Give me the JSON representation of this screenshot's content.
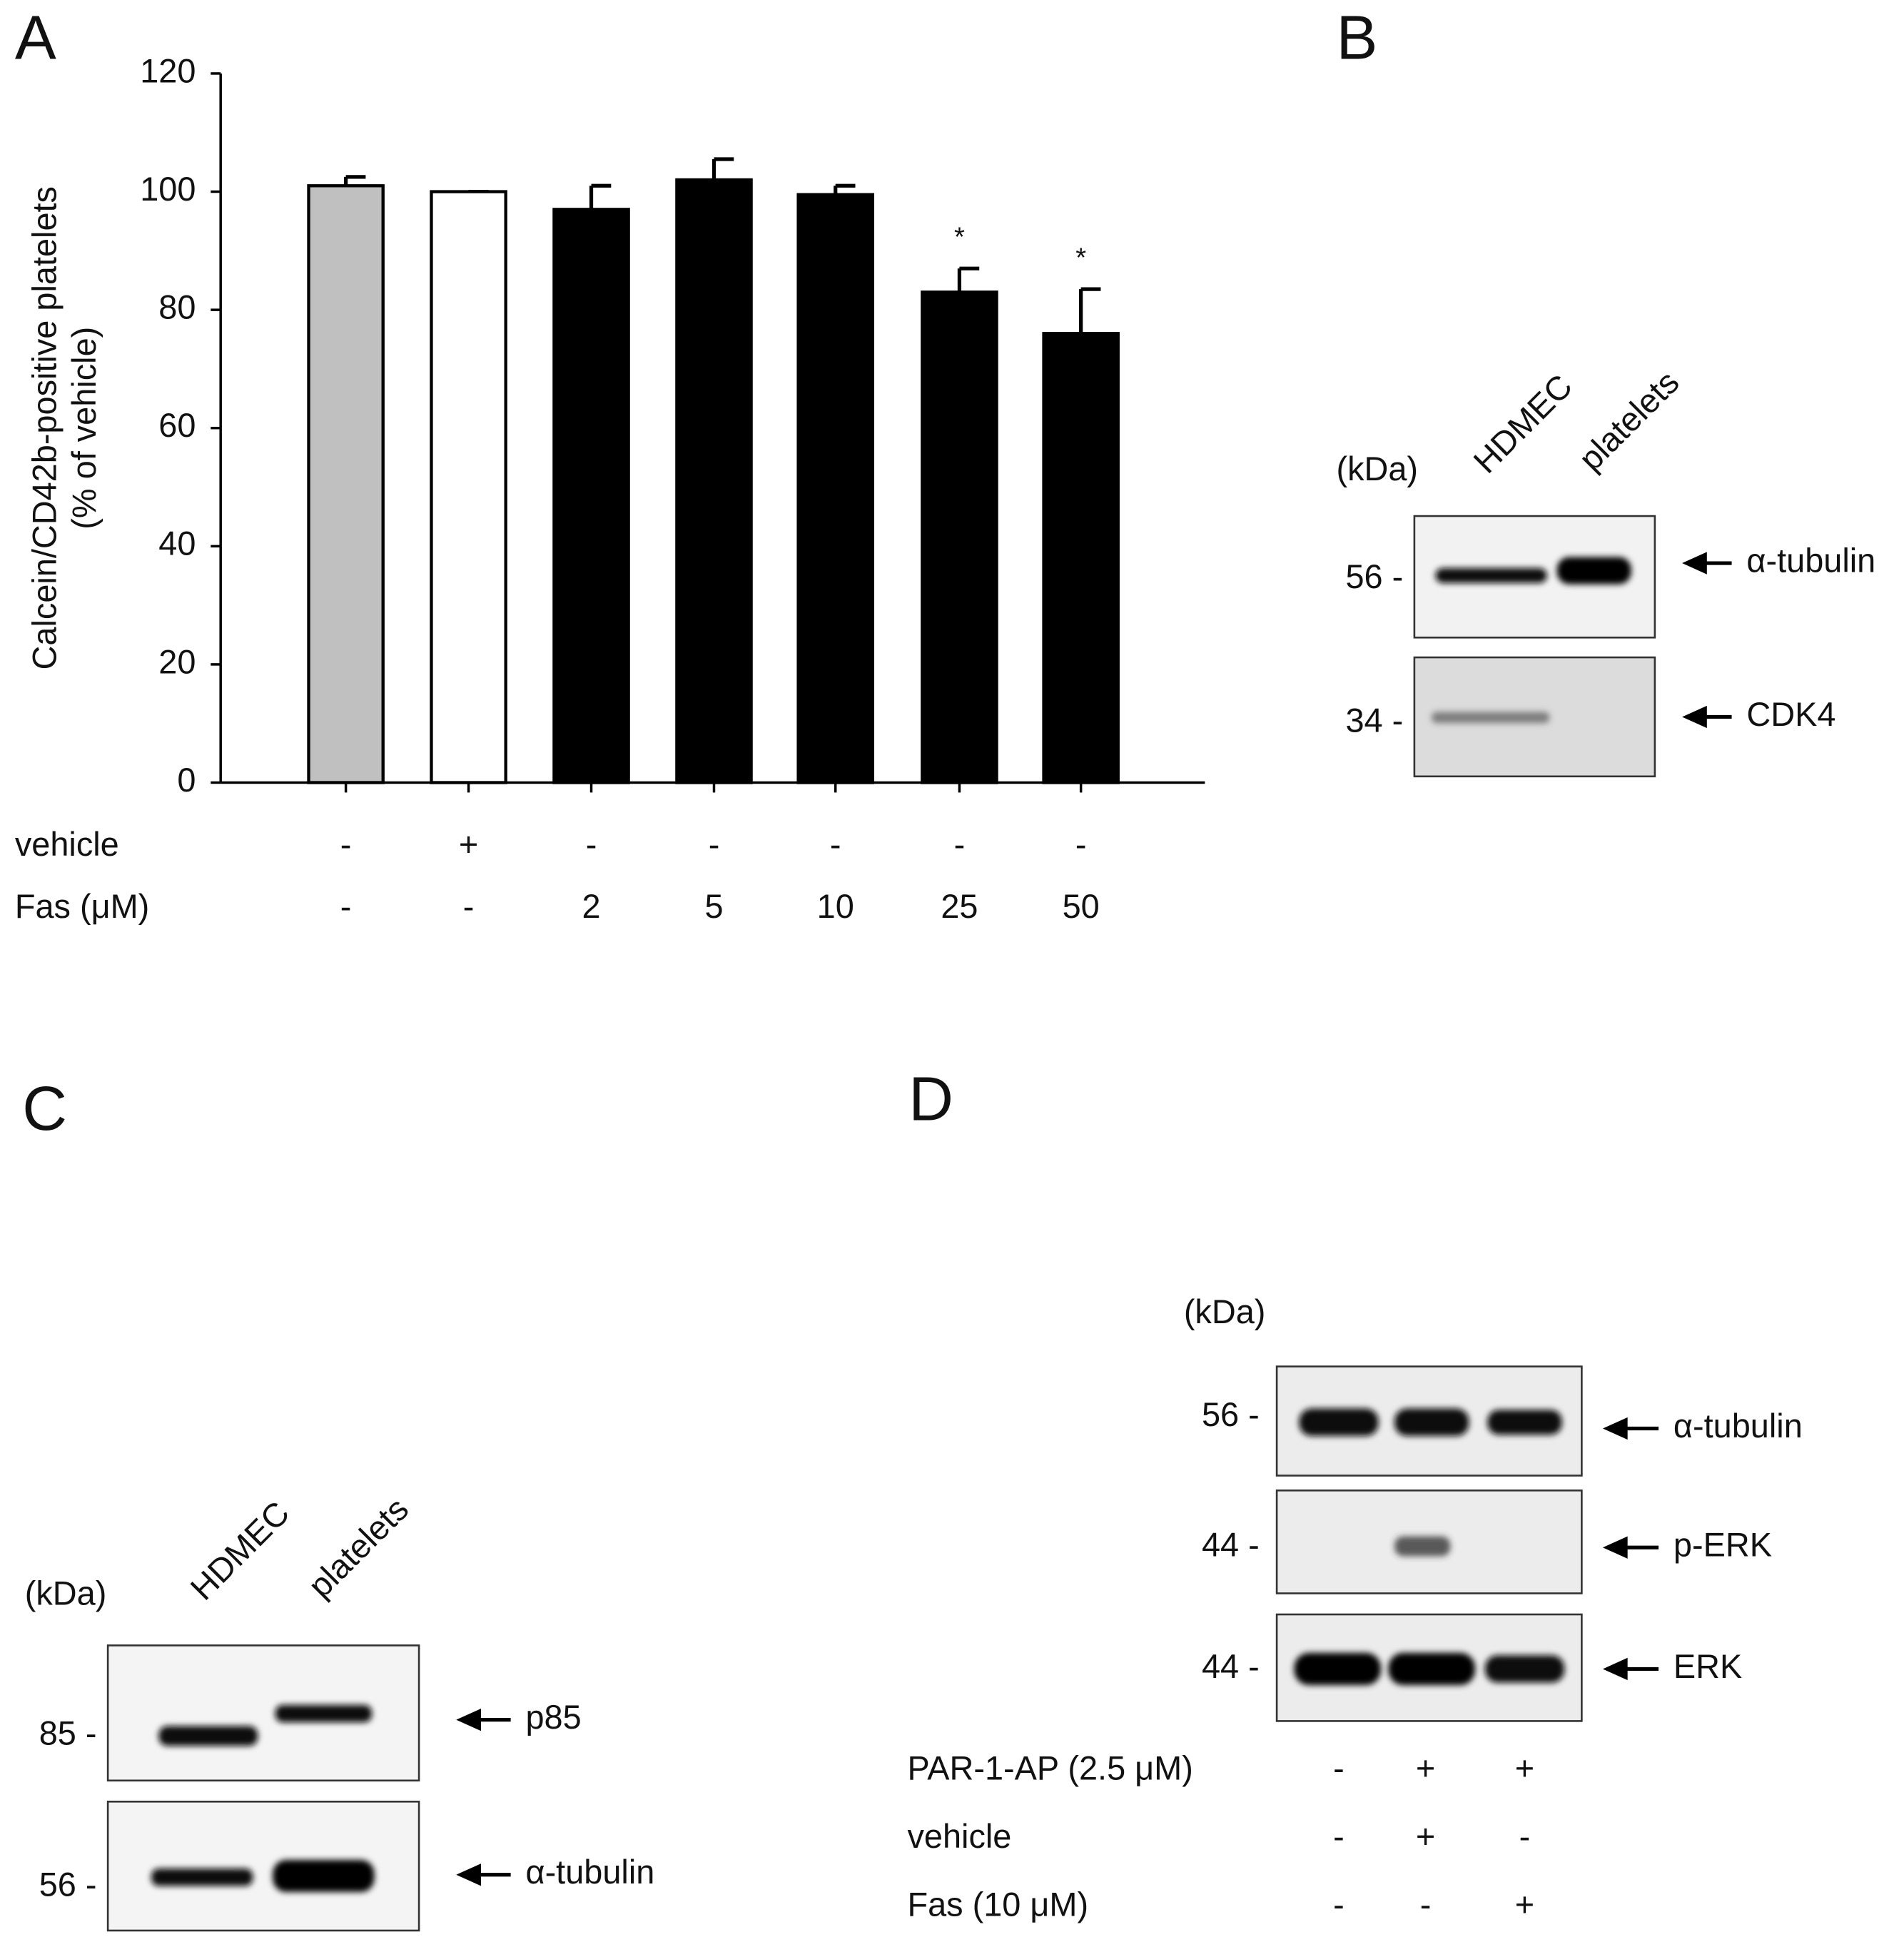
{
  "chart_data": {
    "type": "bar",
    "panel": "A",
    "ylabel": [
      "Calcein/CD42b-positive platelets",
      "(% of vehicle)"
    ],
    "categories": [
      "-",
      "-",
      "2",
      "5",
      "10",
      "25",
      "50"
    ],
    "values": [
      101,
      100,
      97,
      102,
      99.5,
      83,
      76
    ],
    "errors": [
      1.5,
      0,
      4,
      3.5,
      1.5,
      4,
      7.5
    ],
    "colors": [
      "#c0c0c0",
      "#ffffff",
      "#000000",
      "#000000",
      "#000000",
      "#000000",
      "#000000"
    ],
    "significance": [
      null,
      null,
      null,
      null,
      null,
      "*",
      "*"
    ],
    "ylim": [
      0,
      120
    ],
    "yticks": [
      0,
      20,
      40,
      60,
      80,
      100,
      120
    ],
    "condition_rows": [
      {
        "label": "vehicle",
        "values": [
          "-",
          "+",
          "-",
          "-",
          "-",
          "-",
          "-"
        ]
      },
      {
        "label": "Fas (μM)",
        "values": [
          "-",
          "-",
          "2",
          "5",
          "10",
          "25",
          "50"
        ]
      }
    ]
  },
  "panel_b": {
    "letter": "B",
    "unit": "(kDa)",
    "lanes": [
      "HDMEC",
      "platelets"
    ],
    "rows": [
      {
        "marker": "56 -",
        "label": "α-tubulin"
      },
      {
        "marker": "34 -",
        "label": "CDK4"
      }
    ]
  },
  "panel_c": {
    "letter": "C",
    "unit": "(kDa)",
    "lanes": [
      "HDMEC",
      "platelets"
    ],
    "rows": [
      {
        "marker": "85 -",
        "label": "p85"
      },
      {
        "marker": "56 -",
        "label": "α-tubulin"
      }
    ]
  },
  "panel_d": {
    "letter": "D",
    "unit": "(kDa)",
    "rows": [
      {
        "marker": "56 -",
        "label": "α-tubulin"
      },
      {
        "marker": "44 -",
        "label": "p-ERK"
      },
      {
        "marker": "44 -",
        "label": "ERK"
      }
    ],
    "conditions": [
      {
        "label": "PAR-1-AP (2.5 μM)",
        "values": [
          "-",
          "+",
          "+"
        ]
      },
      {
        "label": "vehicle",
        "values": [
          "-",
          "+",
          "-"
        ]
      },
      {
        "label": "Fas (10 μM)",
        "values": [
          "-",
          "-",
          "+"
        ]
      }
    ]
  }
}
